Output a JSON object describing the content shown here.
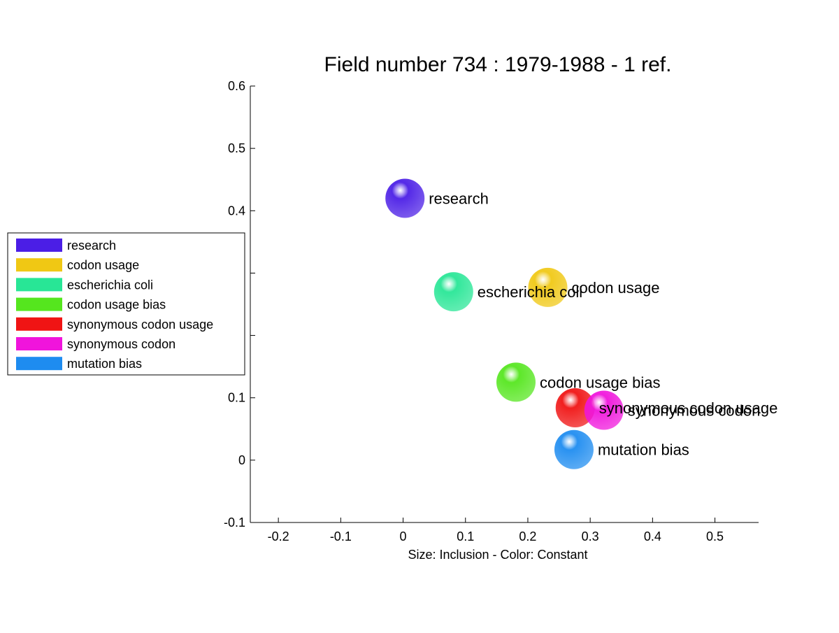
{
  "chart_data": {
    "type": "scatter",
    "title": "Field number 734 : 1979-1988  - 1 ref.",
    "xlabel": "Size: Inclusion - Color: Constant",
    "ylabel": "",
    "xlim": [
      -0.245,
      0.57
    ],
    "ylim": [
      -0.1,
      0.6
    ],
    "xticks": [
      "-0.2",
      "-0.1",
      "0",
      "0.1",
      "0.2",
      "0.3",
      "0.4",
      "0.5"
    ],
    "xtick_values": [
      -0.2,
      -0.1,
      0,
      0.1,
      0.2,
      0.3,
      0.4,
      0.5
    ],
    "yticks": [
      "-0.1",
      "0",
      "0.1",
      "",
      "",
      "0.4",
      "0.5",
      "0.6"
    ],
    "ytick_values": [
      -0.1,
      0,
      0.1,
      0.2,
      0.3,
      0.4,
      0.5,
      0.6
    ],
    "grid": false,
    "legend_position": "left",
    "points": [
      {
        "label": "research",
        "x": 0.003,
        "y": 0.42,
        "color": "#4b1ee6"
      },
      {
        "label": "codon usage",
        "x": 0.232,
        "y": 0.277,
        "color": "#f0c814"
      },
      {
        "label": "escherichia coli",
        "x": 0.081,
        "y": 0.27,
        "color": "#28e696"
      },
      {
        "label": "codon usage bias",
        "x": 0.181,
        "y": 0.125,
        "color": "#55e61e"
      },
      {
        "label": "synonymous codon usage",
        "x": 0.276,
        "y": 0.084,
        "color": "#f01414"
      },
      {
        "label": "synonymous codon",
        "x": 0.322,
        "y": 0.08,
        "color": "#f014dc"
      },
      {
        "label": "mutation bias",
        "x": 0.274,
        "y": 0.017,
        "color": "#1e8cf0"
      }
    ]
  }
}
